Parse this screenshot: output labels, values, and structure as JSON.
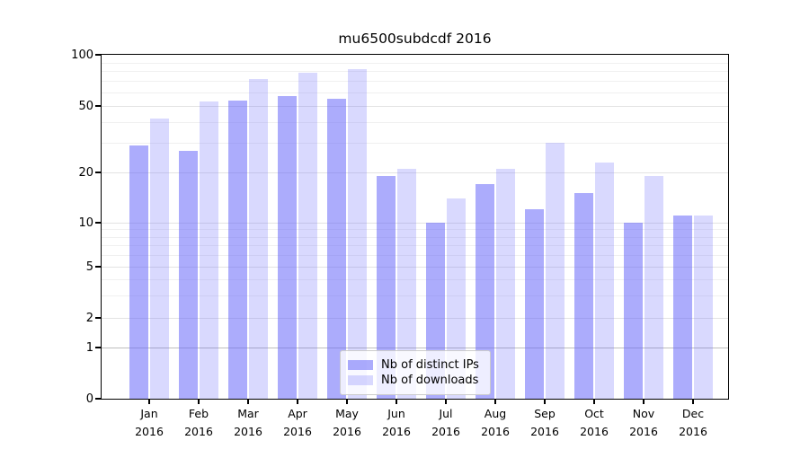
{
  "title": "mu6500subdcdf 2016",
  "year_label": "2016",
  "months": [
    "Jan",
    "Feb",
    "Mar",
    "Apr",
    "May",
    "Jun",
    "Jul",
    "Aug",
    "Sep",
    "Oct",
    "Nov",
    "Dec"
  ],
  "legend": {
    "items": [
      {
        "label": "Nb of distinct IPs",
        "series": "distinct_ips"
      },
      {
        "label": "Nb of downloads",
        "series": "downloads"
      }
    ]
  },
  "colors": {
    "bar_distinct_ips": "rgba(103,103,250,0.55)",
    "bar_downloads": "rgba(103,103,250,0.25)",
    "grid_minor": "#f0f0f0",
    "grid_major": "#e3e3e3",
    "grid_unit_line": "#bdbdbd",
    "axis": "#000000",
    "legend_border": "#cccccc"
  },
  "y_axis": {
    "ticks": [
      0,
      1,
      2,
      5,
      10,
      20,
      50,
      100
    ]
  },
  "chart_data": {
    "type": "bar",
    "title": "mu6500subdcdf 2016",
    "categories": [
      "Jan 2016",
      "Feb 2016",
      "Mar 2016",
      "Apr 2016",
      "May 2016",
      "Jun 2016",
      "Jul 2016",
      "Aug 2016",
      "Sep 2016",
      "Oct 2016",
      "Nov 2016",
      "Dec 2016"
    ],
    "series": [
      {
        "name": "Nb of distinct IPs",
        "key": "distinct_ips",
        "values": [
          29,
          27,
          54,
          57,
          55,
          19,
          10,
          17,
          12,
          15,
          10,
          11
        ]
      },
      {
        "name": "Nb of downloads",
        "key": "downloads",
        "values": [
          42,
          53,
          72,
          78,
          82,
          21,
          14,
          21,
          30,
          23,
          19,
          11
        ]
      }
    ],
    "yscale": "symlog",
    "yticks": [
      0,
      1,
      2,
      5,
      10,
      20,
      50,
      100
    ],
    "minor_grid_values": [
      3,
      4,
      6,
      7,
      8,
      9,
      30,
      40,
      60,
      70,
      80,
      90
    ],
    "ylim": [
      0,
      100
    ],
    "grid": true,
    "legend_position": "lower center"
  }
}
